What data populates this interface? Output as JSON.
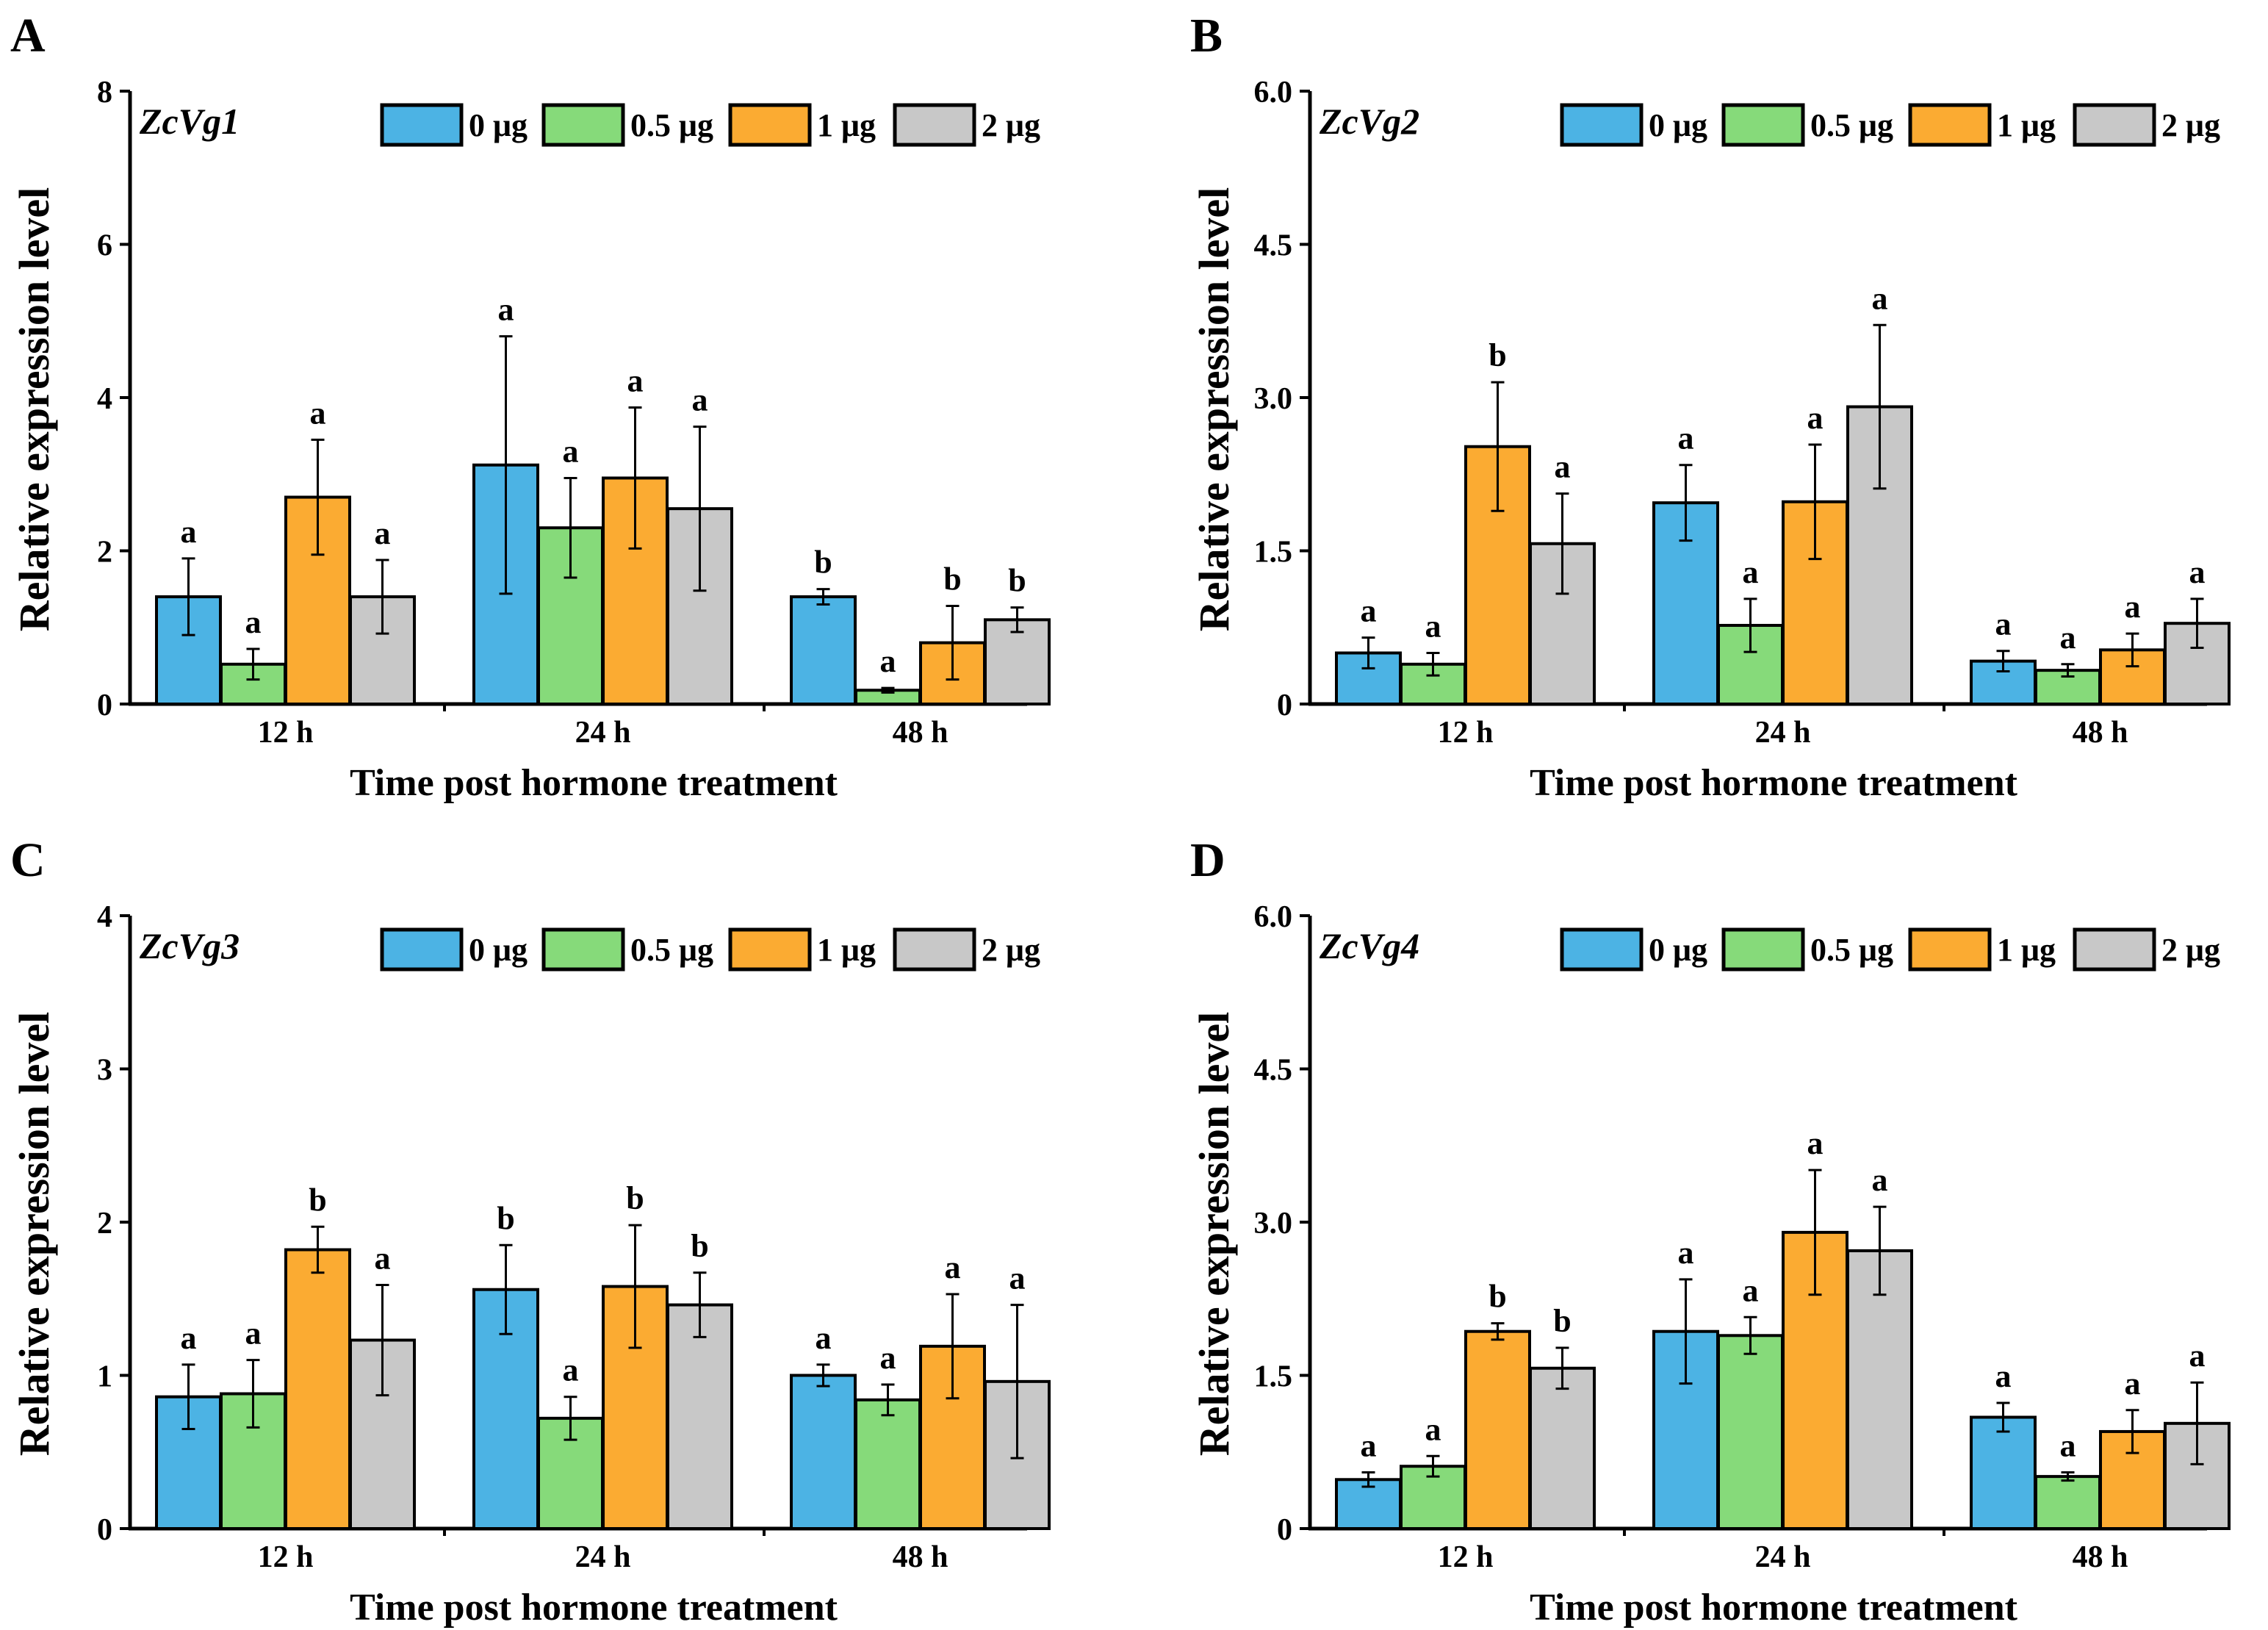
{
  "figure": {
    "colors": {
      "0 μg": "#4cb3e4",
      "0.5 μg": "#86da7a",
      "1 μg": "#fbab32",
      "2 μg": "#c8c8c8"
    },
    "legend_labels": [
      "0 μg",
      "0.5 μg",
      "1 μg",
      "2 μg"
    ]
  },
  "chart_data": [
    {
      "panel": "A",
      "type": "bar",
      "title": "ZcVg1",
      "xlabel": "Time post hormone treatment",
      "ylabel": "Relative expression level",
      "categories": [
        "12 h",
        "24 h",
        "48 h"
      ],
      "ylim": [
        0,
        8
      ],
      "yticks": [
        "0",
        "2",
        "4",
        "6",
        "8"
      ],
      "series": [
        {
          "name": "0 μg",
          "values": [
            1.4,
            3.12,
            1.4
          ],
          "errors": [
            0.5,
            1.68,
            0.1
          ],
          "letters": [
            "a",
            "a",
            "b"
          ]
        },
        {
          "name": "0.5 μg",
          "values": [
            0.52,
            2.3,
            0.18
          ],
          "errors": [
            0.2,
            0.65,
            0.03
          ],
          "letters": [
            "a",
            "a",
            "a"
          ]
        },
        {
          "name": "1 μg",
          "values": [
            2.7,
            2.95,
            0.8
          ],
          "errors": [
            0.75,
            0.92,
            0.48
          ],
          "letters": [
            "a",
            "a",
            "b"
          ]
        },
        {
          "name": "2 μg",
          "values": [
            1.4,
            2.55,
            1.1
          ],
          "errors": [
            0.48,
            1.07,
            0.16
          ],
          "letters": [
            "a",
            "a",
            "b"
          ]
        }
      ]
    },
    {
      "panel": "B",
      "type": "bar",
      "title": "ZcVg2",
      "xlabel": "Time post hormone treatment",
      "ylabel": "Relative expression level",
      "categories": [
        "12 h",
        "24 h",
        "48 h"
      ],
      "ylim": [
        0,
        6
      ],
      "yticks": [
        "0",
        "1.5",
        "3.0",
        "4.5",
        "6.0"
      ],
      "series": [
        {
          "name": "0 μg",
          "values": [
            0.5,
            1.97,
            0.42
          ],
          "errors": [
            0.15,
            0.37,
            0.1
          ],
          "letters": [
            "a",
            "a",
            "a"
          ]
        },
        {
          "name": "0.5 μg",
          "values": [
            0.39,
            0.77,
            0.33
          ],
          "errors": [
            0.11,
            0.26,
            0.06
          ],
          "letters": [
            "a",
            "a",
            "a"
          ]
        },
        {
          "name": "1 μg",
          "values": [
            2.52,
            1.98,
            0.53
          ],
          "errors": [
            0.63,
            0.56,
            0.16
          ],
          "letters": [
            "b",
            "a",
            "a"
          ]
        },
        {
          "name": "2 μg",
          "values": [
            1.57,
            2.91,
            0.79
          ],
          "errors": [
            0.49,
            0.8,
            0.24
          ],
          "letters": [
            "a",
            "a",
            "a"
          ]
        }
      ]
    },
    {
      "panel": "C",
      "type": "bar",
      "title": "ZcVg3",
      "xlabel": "Time post hormone treatment",
      "ylabel": "Relative expression level",
      "categories": [
        "12 h",
        "24 h",
        "48 h"
      ],
      "ylim": [
        0,
        4
      ],
      "yticks": [
        "0",
        "1",
        "2",
        "3",
        "4"
      ],
      "series": [
        {
          "name": "0 μg",
          "values": [
            0.86,
            1.56,
            1.0
          ],
          "errors": [
            0.21,
            0.29,
            0.07
          ],
          "letters": [
            "a",
            "b",
            "a"
          ]
        },
        {
          "name": "0.5 μg",
          "values": [
            0.88,
            0.72,
            0.84
          ],
          "errors": [
            0.22,
            0.14,
            0.1
          ],
          "letters": [
            "a",
            "a",
            "a"
          ]
        },
        {
          "name": "1 μg",
          "values": [
            1.82,
            1.58,
            1.19
          ],
          "errors": [
            0.15,
            0.4,
            0.34
          ],
          "letters": [
            "b",
            "b",
            "a"
          ]
        },
        {
          "name": "2 μg",
          "values": [
            1.23,
            1.46,
            0.96
          ],
          "errors": [
            0.36,
            0.21,
            0.5
          ],
          "letters": [
            "a",
            "b",
            "a"
          ]
        }
      ]
    },
    {
      "panel": "D",
      "type": "bar",
      "title": "ZcVg4",
      "xlabel": "Time post hormone treatment",
      "ylabel": "Relative expression level",
      "categories": [
        "12 h",
        "24 h",
        "48 h"
      ],
      "ylim": [
        0,
        6
      ],
      "yticks": [
        "0",
        "1.5",
        "3.0",
        "4.5",
        "6.0"
      ],
      "series": [
        {
          "name": "0 μg",
          "values": [
            0.48,
            1.93,
            1.09
          ],
          "errors": [
            0.07,
            0.51,
            0.14
          ],
          "letters": [
            "a",
            "a",
            "a"
          ]
        },
        {
          "name": "0.5 μg",
          "values": [
            0.61,
            1.89,
            0.51
          ],
          "errors": [
            0.1,
            0.18,
            0.04
          ],
          "letters": [
            "a",
            "a",
            "a"
          ]
        },
        {
          "name": "1 μg",
          "values": [
            1.93,
            2.9,
            0.95
          ],
          "errors": [
            0.08,
            0.61,
            0.21
          ],
          "letters": [
            "b",
            "a",
            "a"
          ]
        },
        {
          "name": "2 μg",
          "values": [
            1.57,
            2.72,
            1.03
          ],
          "errors": [
            0.2,
            0.43,
            0.4
          ],
          "letters": [
            "b",
            "a",
            "a"
          ]
        }
      ]
    }
  ]
}
